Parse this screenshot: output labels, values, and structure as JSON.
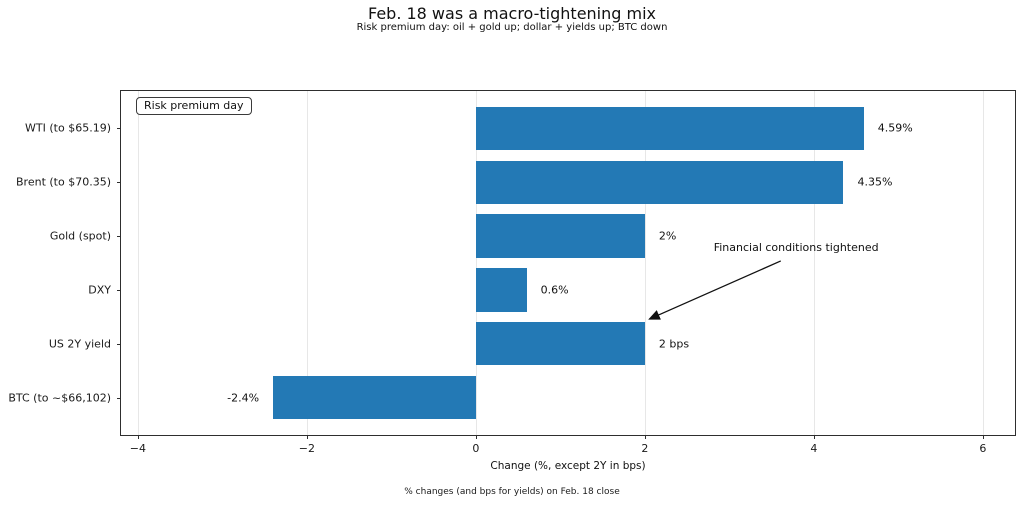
{
  "chart_data": {
    "type": "bar",
    "orientation": "horizontal",
    "title": "Feb. 18 was a macro-tightening mix",
    "subtitle": "Risk premium day: oil + gold up; dollar + yields up; BTC down",
    "categories": [
      "WTI (to $65.19)",
      "Brent (to $70.35)",
      "Gold (spot)",
      "DXY",
      "US 2Y yield",
      "BTC (to ~$66,102)"
    ],
    "values": [
      4.59,
      4.35,
      2,
      0.6,
      2,
      -2.4
    ],
    "value_labels": [
      "4.59%",
      "4.35%",
      "2%",
      "0.6%",
      "2 bps",
      "-2.4%"
    ],
    "xlabel": "Change (%, except 2Y in bps)",
    "footnote": "% changes (and bps for yields) on Feb. 18 close",
    "xlim": [
      -4.2,
      6.38
    ],
    "xticks": [
      -4,
      -2,
      0,
      2,
      4,
      6
    ],
    "xtick_labels": [
      "−4",
      "−2",
      "0",
      "2",
      "4",
      "6"
    ],
    "grid": true,
    "legend": {
      "label": "Risk premium day",
      "position": "upper-left"
    },
    "annotation": {
      "text": "Financial conditions tightened",
      "text_frac": [
        0.663,
        0.437
      ],
      "arrow_start_frac": [
        0.738,
        0.494
      ],
      "arrow_tip_frac": [
        0.591,
        0.663
      ]
    },
    "colors": {
      "bar": "#2379b5",
      "grid": "#e7e7e7",
      "spine": "#2e2e2e",
      "text": "#111111"
    }
  }
}
